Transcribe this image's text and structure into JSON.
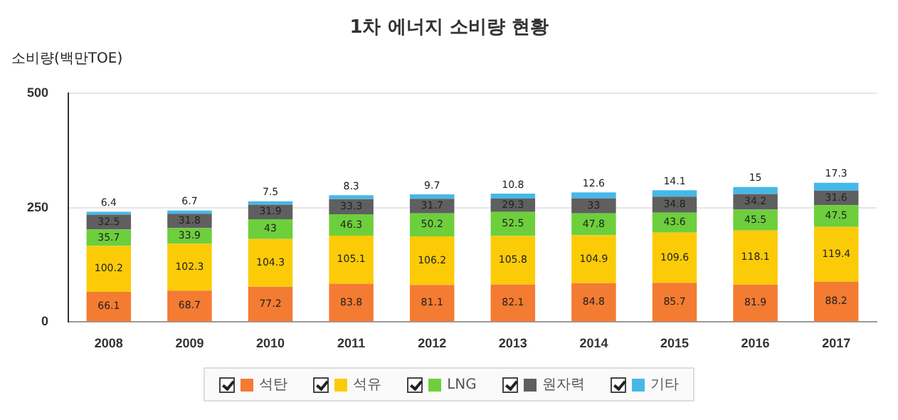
{
  "chart_data": {
    "type": "bar",
    "title": "1차 에너지 소비량 현황",
    "ylabel": "소비량(백만TOE)",
    "stacked": true,
    "data_labels": true,
    "grid": "y",
    "legend": "bottom",
    "categories": [
      "2008",
      "2009",
      "2010",
      "2011",
      "2012",
      "2013",
      "2014",
      "2015",
      "2016",
      "2017"
    ],
    "ylim": [
      0,
      500
    ],
    "yticks": [
      0,
      250,
      500
    ],
    "series": [
      {
        "name": "석탄",
        "color": "#f47b32",
        "values": [
          66.1,
          68.7,
          77.2,
          83.8,
          81.1,
          82.1,
          84.8,
          85.7,
          81.9,
          88.2
        ]
      },
      {
        "name": "석유",
        "color": "#fccb08",
        "values": [
          100.2,
          102.3,
          104.3,
          105.1,
          106.2,
          105.8,
          104.9,
          109.6,
          118.1,
          119.4
        ]
      },
      {
        "name": "LNG",
        "color": "#6dcf3c",
        "values": [
          35.7,
          33.9,
          43,
          46.3,
          50.2,
          52.5,
          47.8,
          43.6,
          45.5,
          47.5
        ]
      },
      {
        "name": "원자력",
        "color": "#5f5f5f",
        "values": [
          32.5,
          31.8,
          31.9,
          33.3,
          31.7,
          29.3,
          33,
          34.8,
          34.2,
          31.6
        ]
      },
      {
        "name": "기타",
        "color": "#46b8e8",
        "values": [
          6.4,
          6.7,
          7.5,
          8.3,
          9.7,
          10.8,
          12.6,
          14.1,
          15,
          17.3
        ]
      }
    ]
  }
}
